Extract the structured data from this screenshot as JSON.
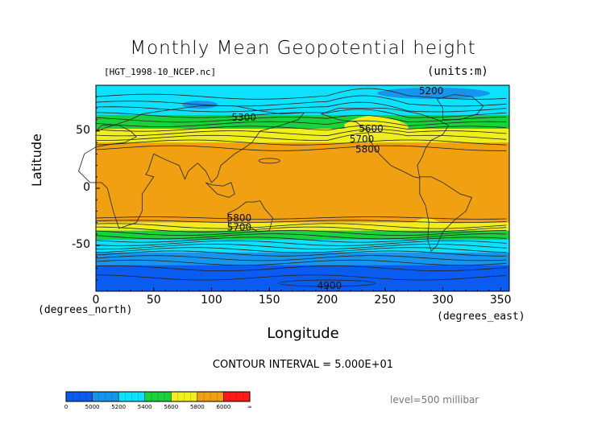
{
  "chart_data": {
    "type": "heatmap",
    "title": "Monthly Mean Geopotential height",
    "subtitle": "[HGT_1998-10_NCEP.nc]",
    "units_label": "(units:m)",
    "xlabel": "Longitude",
    "ylabel": "Latitude",
    "x_units": "(degrees_north)",
    "x_units_right": "(degrees_east)",
    "xlim": [
      0,
      357.5
    ],
    "ylim": [
      -90,
      90
    ],
    "x_ticks": [
      0,
      50,
      100,
      150,
      200,
      250,
      300,
      350
    ],
    "y_ticks": [
      -50,
      0,
      50
    ],
    "contour_interval": "CONTOUR INTERVAL = 5.000E+01",
    "level": "level=500 millibar",
    "colorbar": {
      "levels": [
        "0",
        "5000",
        "5200",
        "5400",
        "5600",
        "5800",
        "6000",
        "∞"
      ],
      "colors": [
        "#0a5cf0",
        "#1795ec",
        "#0ce2ff",
        "#18d23c",
        "#f0ef1d",
        "#f0a010",
        "#ff1a1a"
      ]
    },
    "bands": [
      {
        "lat_from": 90,
        "lat_to": 64,
        "value_range": [
          5200,
          5400
        ],
        "color": "#0ce2ff"
      },
      {
        "lat_from": 64,
        "lat_to": 52,
        "value_range": [
          5400,
          5600
        ],
        "color": "#18d23c"
      },
      {
        "lat_from": 52,
        "lat_to": 40,
        "value_range": [
          5600,
          5800
        ],
        "color": "#f0ef1d"
      },
      {
        "lat_from": 40,
        "lat_to": -30,
        "value_range": [
          5800,
          6000
        ],
        "color": "#f0a010"
      },
      {
        "lat_from": -30,
        "lat_to": -37,
        "value_range": [
          5600,
          5800
        ],
        "color": "#f0ef1d"
      },
      {
        "lat_from": -37,
        "lat_to": -45,
        "value_range": [
          5400,
          5600
        ],
        "color": "#18d23c"
      },
      {
        "lat_from": -45,
        "lat_to": -56,
        "value_range": [
          5200,
          5400
        ],
        "color": "#0ce2ff"
      },
      {
        "lat_from": -56,
        "lat_to": -67,
        "value_range": [
          5000,
          5200
        ],
        "color": "#1795ec"
      },
      {
        "lat_from": -67,
        "lat_to": -90,
        "value_range": [
          0,
          5000
        ],
        "color": "#0a5cf0"
      }
    ],
    "contour_labels": [
      {
        "text": "5200",
        "lon": 290,
        "lat": 85
      },
      {
        "text": "5300",
        "lon": 128,
        "lat": 62
      },
      {
        "text": "5600",
        "lon": 238,
        "lat": 52
      },
      {
        "text": "5700",
        "lon": 230,
        "lat": 43
      },
      {
        "text": "5800",
        "lon": 235,
        "lat": 34
      },
      {
        "text": "5800",
        "lon": 124,
        "lat": -26
      },
      {
        "text": "5700",
        "lon": 124,
        "lat": -34
      },
      {
        "text": "4900",
        "lon": 202,
        "lat": -85
      }
    ]
  }
}
